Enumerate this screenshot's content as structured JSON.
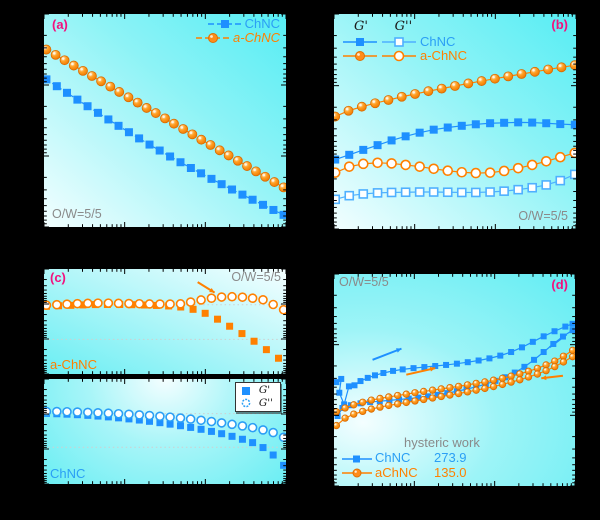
{
  "colors": {
    "blue": "#1E90FF",
    "blue_open": "#4FB0FF",
    "blue_text": "#2B9FF5",
    "orange": "#FF8000",
    "orange_dark": "#E06F00",
    "magenta_tag": "#F2117E",
    "gray_text": "#8a8a8a",
    "panel_cyan": "#6aeef3",
    "grid_dot": "#cfcfcf"
  },
  "panels": {
    "a": {
      "tag": "(a)",
      "condition": "O/W=5/5",
      "legend": {
        "rows": [
          {
            "label": "ChNC"
          },
          {
            "label": "a-ChNC"
          }
        ]
      }
    },
    "b": {
      "tag": "(b)",
      "condition": "O/W=5/5",
      "legend": {
        "col1": "G'",
        "col2": "G''",
        "rows": [
          {
            "label": "ChNC"
          },
          {
            "label": "a-ChNC"
          }
        ]
      }
    },
    "c": {
      "tag": "(c)",
      "condition": "O/W=5/5",
      "top_series_label": "a-ChNC",
      "bottom_series_label": "ChNC",
      "legend": {
        "rows": [
          {
            "label": "G'"
          },
          {
            "label": "G''"
          }
        ]
      }
    },
    "d": {
      "tag": "(d)",
      "condition": "O/W=5/5",
      "legend": {
        "title": "hysteric work",
        "rows": [
          {
            "label": "ChNC",
            "value": "273.9"
          },
          {
            "label": "aChNC",
            "value": "135.0"
          }
        ]
      }
    }
  },
  "chart_data": [
    {
      "id": "plot-a",
      "type": "scatter",
      "panel": "a",
      "note": "log-log flow curves (viscosity vs shear rate); axis tick labels are not visible (black margins). Coordinates are normalized 0-1, y from bottom.",
      "x_decades": 3,
      "y_decades": 3,
      "legend_position": "top-right",
      "series": [
        {
          "name": "ChNC",
          "marker": "square",
          "color": "#1E90FF",
          "size": 8,
          "line": "dash",
          "x": [
            0.01,
            0.053,
            0.095,
            0.138,
            0.18,
            0.223,
            0.266,
            0.308,
            0.351,
            0.393,
            0.436,
            0.478,
            0.521,
            0.564,
            0.607,
            0.649,
            0.692,
            0.734,
            0.777,
            0.82,
            0.862,
            0.905,
            0.948,
            0.99
          ],
          "y": [
            0.693,
            0.661,
            0.63,
            0.598,
            0.567,
            0.536,
            0.505,
            0.475,
            0.445,
            0.416,
            0.387,
            0.359,
            0.331,
            0.304,
            0.277,
            0.252,
            0.226,
            0.201,
            0.176,
            0.152,
            0.128,
            0.104,
            0.08,
            0.057
          ]
        },
        {
          "name": "a-ChNC",
          "marker": "ball",
          "color": "#FF8000",
          "size": 9,
          "line": "dash",
          "x": [
            0.01,
            0.048,
            0.085,
            0.123,
            0.161,
            0.198,
            0.236,
            0.274,
            0.311,
            0.349,
            0.387,
            0.424,
            0.462,
            0.5,
            0.537,
            0.575,
            0.613,
            0.65,
            0.688,
            0.726,
            0.763,
            0.801,
            0.839,
            0.876,
            0.914,
            0.952,
            0.99
          ],
          "y": [
            0.833,
            0.808,
            0.783,
            0.758,
            0.733,
            0.709,
            0.684,
            0.659,
            0.634,
            0.609,
            0.584,
            0.559,
            0.535,
            0.51,
            0.485,
            0.46,
            0.435,
            0.41,
            0.385,
            0.36,
            0.336,
            0.311,
            0.286,
            0.261,
            0.236,
            0.211,
            0.186
          ]
        }
      ]
    },
    {
      "id": "plot-b",
      "type": "scatter",
      "panel": "b",
      "note": "frequency sweep G' and G''; normalized coords, y from bottom.",
      "x_decades": 3,
      "y_decades": 3,
      "legend_position": "top-left",
      "series": [
        {
          "name": "G'' ChNC",
          "marker": "square_open",
          "color": "#4FB0FF",
          "size": 8,
          "line": "solid",
          "x": [
            0.005,
            0.063,
            0.121,
            0.18,
            0.238,
            0.296,
            0.354,
            0.412,
            0.47,
            0.528,
            0.586,
            0.645,
            0.703,
            0.761,
            0.819,
            0.877,
            0.935,
            0.995
          ],
          "y": [
            0.138,
            0.155,
            0.163,
            0.168,
            0.17,
            0.171,
            0.172,
            0.172,
            0.171,
            0.17,
            0.17,
            0.172,
            0.176,
            0.183,
            0.192,
            0.205,
            0.225,
            0.254
          ]
        },
        {
          "name": "G'' a-ChNC",
          "marker": "circle_open",
          "color": "#FF8000",
          "size": 9,
          "line": "solid",
          "x": [
            0.005,
            0.063,
            0.121,
            0.18,
            0.238,
            0.296,
            0.354,
            0.412,
            0.47,
            0.528,
            0.586,
            0.645,
            0.703,
            0.761,
            0.819,
            0.877,
            0.935,
            0.995
          ],
          "y": [
            0.262,
            0.29,
            0.303,
            0.308,
            0.305,
            0.298,
            0.29,
            0.28,
            0.271,
            0.264,
            0.26,
            0.262,
            0.27,
            0.283,
            0.298,
            0.315,
            0.334,
            0.354
          ]
        },
        {
          "name": "G' ChNC",
          "marker": "square",
          "color": "#1E90FF",
          "size": 8,
          "line": "solid",
          "x": [
            0.005,
            0.063,
            0.121,
            0.18,
            0.238,
            0.296,
            0.354,
            0.412,
            0.47,
            0.528,
            0.586,
            0.645,
            0.703,
            0.761,
            0.819,
            0.877,
            0.935,
            0.995
          ],
          "y": [
            0.323,
            0.345,
            0.368,
            0.39,
            0.412,
            0.431,
            0.448,
            0.462,
            0.472,
            0.48,
            0.487,
            0.492,
            0.494,
            0.496,
            0.495,
            0.492,
            0.488,
            0.485
          ]
        },
        {
          "name": "G' a-ChNC",
          "marker": "ball",
          "color": "#FF8000",
          "size": 9,
          "line": "solid",
          "x": [
            0.005,
            0.06,
            0.115,
            0.17,
            0.225,
            0.28,
            0.335,
            0.39,
            0.445,
            0.5,
            0.555,
            0.61,
            0.665,
            0.72,
            0.775,
            0.83,
            0.885,
            0.94,
            0.995
          ],
          "y": [
            0.523,
            0.55,
            0.569,
            0.585,
            0.6,
            0.615,
            0.628,
            0.641,
            0.653,
            0.665,
            0.677,
            0.688,
            0.699,
            0.71,
            0.721,
            0.731,
            0.742,
            0.752,
            0.762
          ]
        }
      ]
    },
    {
      "id": "plot-c-top",
      "type": "scatter",
      "panel": "c (top, a-ChNC)",
      "note": "amplitude sweep a-ChNC; dotted gridlines at decade levels; normalized coords, y from bottom.",
      "x_decades": 3,
      "y_decades": 3,
      "gridlines_y": [
        0.33,
        0.66
      ],
      "arrows": [
        {
          "color": "#FF8000",
          "from": [
            0.635,
            0.875
          ],
          "to": [
            0.705,
            0.775
          ]
        }
      ],
      "series": [
        {
          "name": "G' a-ChNC",
          "marker": "square",
          "color": "#FF8000",
          "size": 7,
          "line": "none",
          "x": [
            0.01,
            0.06,
            0.111,
            0.161,
            0.212,
            0.262,
            0.313,
            0.363,
            0.414,
            0.464,
            0.515,
            0.565,
            0.616,
            0.666,
            0.717,
            0.767,
            0.818,
            0.868,
            0.919,
            0.969
          ],
          "y": [
            0.645,
            0.65,
            0.654,
            0.658,
            0.661,
            0.662,
            0.662,
            0.66,
            0.657,
            0.653,
            0.648,
            0.638,
            0.616,
            0.578,
            0.522,
            0.455,
            0.385,
            0.312,
            0.232,
            0.15
          ]
        },
        {
          "name": "G'' a-ChNC",
          "marker": "circle_open",
          "color": "#FF8000",
          "size": 8,
          "line": "none",
          "x": [
            0.01,
            0.053,
            0.095,
            0.138,
            0.181,
            0.223,
            0.266,
            0.308,
            0.351,
            0.394,
            0.436,
            0.479,
            0.521,
            0.564,
            0.606,
            0.649,
            0.692,
            0.734,
            0.777,
            0.82,
            0.862,
            0.905,
            0.947,
            0.99
          ],
          "y": [
            0.655,
            0.66,
            0.665,
            0.67,
            0.673,
            0.675,
            0.675,
            0.673,
            0.671,
            0.669,
            0.667,
            0.666,
            0.666,
            0.668,
            0.685,
            0.705,
            0.722,
            0.733,
            0.736,
            0.732,
            0.722,
            0.707,
            0.662,
            0.612
          ]
        }
      ]
    },
    {
      "id": "plot-c-bottom",
      "type": "scatter",
      "panel": "c (bottom, ChNC)",
      "note": "amplitude sweep ChNC; normalized coords, y from bottom.",
      "x_decades": 3,
      "y_decades": 3,
      "gridlines_y": [
        0.35,
        0.67
      ],
      "series": [
        {
          "name": "G' ChNC",
          "marker": "square",
          "color": "#1E90FF",
          "size": 7,
          "line": "none",
          "x": [
            0.01,
            0.053,
            0.095,
            0.138,
            0.181,
            0.223,
            0.266,
            0.308,
            0.351,
            0.394,
            0.436,
            0.479,
            0.521,
            0.564,
            0.606,
            0.649,
            0.692,
            0.734,
            0.777,
            0.82,
            0.862,
            0.905,
            0.947,
            0.99
          ],
          "y": [
            0.672,
            0.669,
            0.665,
            0.66,
            0.654,
            0.647,
            0.639,
            0.63,
            0.62,
            0.609,
            0.597,
            0.584,
            0.57,
            0.555,
            0.539,
            0.521,
            0.501,
            0.479,
            0.454,
            0.426,
            0.394,
            0.347,
            0.276,
            0.178
          ]
        },
        {
          "name": "G'' ChNC",
          "marker": "circle_open",
          "color": "#2B9FF5",
          "size": 8,
          "line": "none",
          "x": [
            0.01,
            0.053,
            0.095,
            0.138,
            0.181,
            0.223,
            0.266,
            0.308,
            0.351,
            0.394,
            0.436,
            0.479,
            0.521,
            0.564,
            0.606,
            0.649,
            0.692,
            0.734,
            0.777,
            0.82,
            0.862,
            0.905,
            0.947,
            0.99
          ],
          "y": [
            0.69,
            0.69,
            0.688,
            0.685,
            0.682,
            0.678,
            0.674,
            0.669,
            0.664,
            0.658,
            0.652,
            0.645,
            0.637,
            0.628,
            0.618,
            0.607,
            0.595,
            0.582,
            0.568,
            0.553,
            0.537,
            0.515,
            0.49,
            0.445
          ]
        }
      ]
    },
    {
      "id": "plot-d",
      "type": "scatter",
      "panel": "d",
      "note": "thixotropy hysteresis loops (up/down shear sweeps); hysteric work: ChNC 273.9, aChNC 135.0; normalized coords, y from bottom.",
      "x_decades": 3,
      "y_decades": 3,
      "arrows": [
        {
          "color": "#1E90FF",
          "from": [
            0.16,
            0.595
          ],
          "to": [
            0.28,
            0.648
          ]
        },
        {
          "color": "#FF8000",
          "from": [
            0.3,
            0.525
          ],
          "to": [
            0.42,
            0.556
          ]
        },
        {
          "color": "#1E90FF",
          "from": [
            0.965,
            0.715
          ],
          "to": [
            0.895,
            0.655
          ]
        },
        {
          "color": "#FF8000",
          "from": [
            0.95,
            0.52
          ],
          "to": [
            0.86,
            0.508
          ]
        }
      ],
      "series": [
        {
          "name": "ChNC up-sweep",
          "marker": "square",
          "color": "#1E90FF",
          "size": 6,
          "line": "solid",
          "x": [
            0.01,
            0.03,
            0.022,
            0.042,
            0.062,
            0.085,
            0.11,
            0.14,
            0.17,
            0.205,
            0.245,
            0.285,
            0.33,
            0.375,
            0.42,
            0.465,
            0.51,
            0.555,
            0.6,
            0.645,
            0.69,
            0.735,
            0.78,
            0.825,
            0.87,
            0.915,
            0.96,
            0.99
          ],
          "y": [
            0.49,
            0.505,
            0.44,
            0.385,
            0.47,
            0.475,
            0.495,
            0.51,
            0.522,
            0.533,
            0.543,
            0.55,
            0.556,
            0.561,
            0.566,
            0.571,
            0.577,
            0.584,
            0.592,
            0.602,
            0.615,
            0.632,
            0.654,
            0.68,
            0.706,
            0.73,
            0.752,
            0.765
          ]
        },
        {
          "name": "ChNC down-sweep",
          "marker": "square",
          "color": "#1E90FF",
          "size": 6,
          "line": "solid",
          "x": [
            0.99,
            0.95,
            0.91,
            0.87,
            0.83,
            0.79,
            0.75,
            0.71,
            0.67,
            0.63,
            0.59,
            0.55,
            0.51,
            0.47,
            0.43,
            0.39,
            0.35,
            0.31,
            0.27,
            0.23,
            0.19,
            0.15,
            0.11,
            0.07,
            0.035,
            0.015
          ],
          "y": [
            0.735,
            0.705,
            0.67,
            0.632,
            0.595,
            0.562,
            0.535,
            0.513,
            0.496,
            0.481,
            0.468,
            0.457,
            0.447,
            0.438,
            0.43,
            0.423,
            0.417,
            0.412,
            0.408,
            0.404,
            0.4,
            0.396,
            0.39,
            0.381,
            0.368,
            0.33
          ]
        },
        {
          "name": "aChNC up-sweep",
          "marker": "ball",
          "color": "#FF8000",
          "size": 6.5,
          "line": "solid",
          "x": [
            0.01,
            0.046,
            0.082,
            0.119,
            0.155,
            0.191,
            0.227,
            0.264,
            0.3,
            0.336,
            0.372,
            0.409,
            0.445,
            0.481,
            0.517,
            0.554,
            0.59,
            0.626,
            0.662,
            0.699,
            0.735,
            0.771,
            0.807,
            0.844,
            0.88,
            0.916,
            0.952,
            0.99
          ],
          "y": [
            0.35,
            0.368,
            0.383,
            0.395,
            0.405,
            0.413,
            0.42,
            0.427,
            0.433,
            0.44,
            0.446,
            0.452,
            0.458,
            0.464,
            0.47,
            0.477,
            0.484,
            0.491,
            0.499,
            0.508,
            0.518,
            0.529,
            0.541,
            0.555,
            0.571,
            0.589,
            0.612,
            0.64
          ]
        },
        {
          "name": "aChNC down-sweep",
          "marker": "ball",
          "color": "#FF8000",
          "size": 6.5,
          "line": "solid",
          "x": [
            0.99,
            0.952,
            0.916,
            0.88,
            0.844,
            0.807,
            0.771,
            0.735,
            0.699,
            0.662,
            0.626,
            0.59,
            0.554,
            0.517,
            0.481,
            0.445,
            0.409,
            0.372,
            0.336,
            0.3,
            0.264,
            0.227,
            0.191,
            0.155,
            0.119,
            0.082,
            0.046,
            0.01
          ],
          "y": [
            0.61,
            0.585,
            0.563,
            0.544,
            0.528,
            0.514,
            0.501,
            0.49,
            0.479,
            0.469,
            0.46,
            0.452,
            0.444,
            0.436,
            0.429,
            0.422,
            0.415,
            0.408,
            0.401,
            0.394,
            0.387,
            0.38,
            0.372,
            0.363,
            0.352,
            0.339,
            0.32,
            0.285
          ]
        }
      ]
    }
  ]
}
